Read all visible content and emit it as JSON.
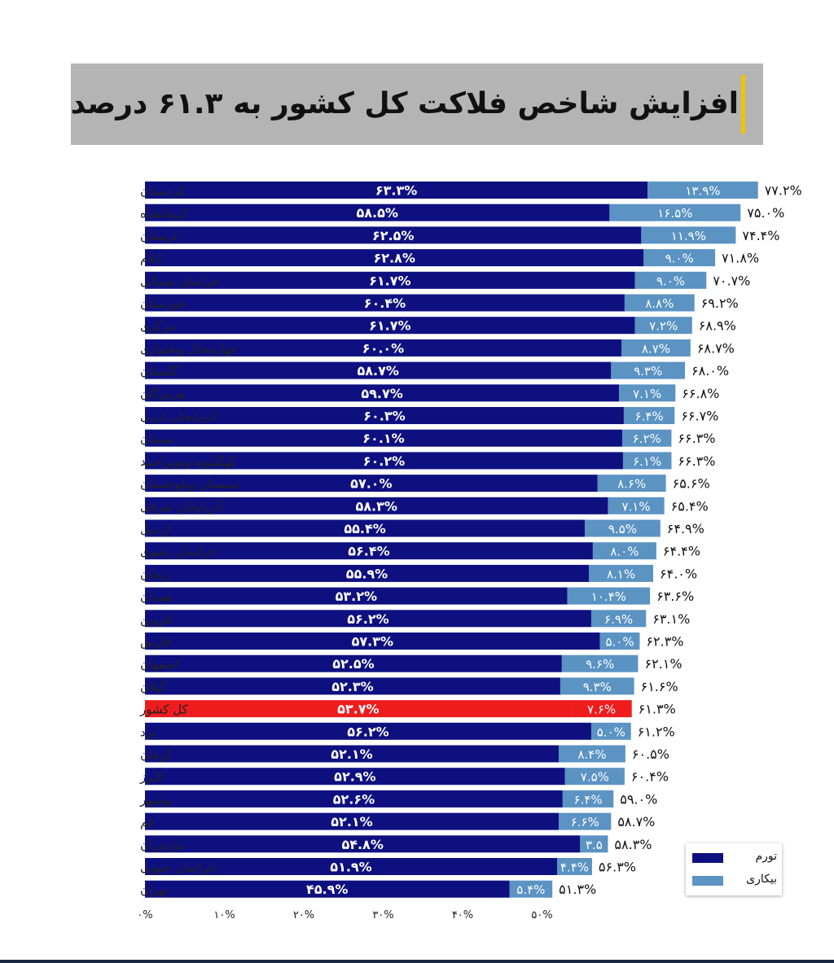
{
  "title": "افزایش شاخص فلاکت کل کشور به ۶۱.۳ درصد",
  "legend": {
    "inflation": "تورم",
    "unemployment": "بیکاری"
  },
  "colors": {
    "inflation": "#0f1080",
    "unemployment": "#5b93c3",
    "highlight": "#ee1c1c",
    "highlight_text": "#d81818"
  },
  "chart_data": {
    "type": "bar",
    "orientation": "horizontal",
    "stacked": true,
    "categories": [
      "کردستان",
      "کرمانشاه",
      "لرستان",
      "ایلام",
      "خراسان شمالی",
      "خوزستان",
      "مرکزی",
      "چهارمحال وبختیاری",
      "گلستان",
      "هرمزگان",
      "آذربایجان غربی",
      "سمنان",
      "کهگیلویه وبویراحمد",
      "سیستان وبلوچستان",
      "آذربایجان شرقی",
      "اردبیل",
      "خراسان رضوی",
      "زنجان",
      "همدان",
      "قزوین",
      "فارس",
      "اصفهان",
      "گیلان",
      "کل کشور",
      "یزد",
      "کرمان",
      "البرز",
      "بوشهر",
      "قم",
      "مازندران",
      "خراسان جنوبی",
      "تهران"
    ],
    "series": [
      {
        "name": "تورم",
        "values": [
          63.3,
          58.5,
          62.5,
          62.8,
          61.7,
          60.4,
          61.7,
          60.0,
          58.7,
          59.7,
          60.3,
          60.1,
          60.2,
          57.0,
          58.3,
          55.4,
          56.4,
          55.9,
          53.2,
          56.2,
          57.3,
          52.5,
          52.3,
          53.7,
          56.2,
          52.1,
          52.9,
          52.6,
          52.1,
          54.8,
          51.9,
          45.9
        ],
        "labels": [
          "۶۳.۳%",
          "۵۸.۵%",
          "۶۲.۵%",
          "۶۲.۸%",
          "۶۱.۷%",
          "۶۰.۴%",
          "۶۱.۷%",
          "۶۰.۰%",
          "۵۸.۷%",
          "۵۹.۷%",
          "۶۰.۳%",
          "۶۰.۱%",
          "۶۰.۲%",
          "۵۷.۰%",
          "۵۸.۳%",
          "۵۵.۴%",
          "۵۶.۴%",
          "۵۵.۹%",
          "۵۳.۲%",
          "۵۶.۲%",
          "۵۷.۳%",
          "۵۲.۵%",
          "۵۲.۳%",
          "۵۳.۷%",
          "۵۶.۲%",
          "۵۲.۱%",
          "۵۲.۹%",
          "۵۲.۶%",
          "۵۲.۱%",
          "۵۴.۸%",
          "۵۱.۹%",
          "۴۵.۹%"
        ]
      },
      {
        "name": "بیکاری",
        "values": [
          13.9,
          16.5,
          11.9,
          9.0,
          9.0,
          8.8,
          7.2,
          8.7,
          9.3,
          7.1,
          6.4,
          6.2,
          6.1,
          8.6,
          7.1,
          9.5,
          8.0,
          8.1,
          10.4,
          6.9,
          5.0,
          9.6,
          9.3,
          7.6,
          5.0,
          8.4,
          7.5,
          6.4,
          6.6,
          3.5,
          4.4,
          5.4
        ],
        "labels": [
          "۱۳.۹%",
          "۱۶.۵%",
          "۱۱.۹%",
          "۹.۰%",
          "۹.۰%",
          "۸.۸%",
          "۷.۲%",
          "۸.۷%",
          "۹.۳%",
          "۷.۱%",
          "۶.۴%",
          "۶.۲%",
          "۶.۱%",
          "۸.۶%",
          "۷.۱%",
          "۹.۵%",
          "۸.۰%",
          "۸.۱%",
          "۱۰.۴%",
          "۶.۹%",
          "۵.۰%",
          "۹.۶%",
          "۹.۳%",
          "۷.۶%",
          "۵.۰%",
          "۸.۴%",
          "۷.۵%",
          "۶.۴%",
          "۶.۶%",
          "۳.۵",
          "۴.۴%",
          "۵.۴%"
        ]
      }
    ],
    "totals": [
      77.2,
      75.0,
      74.4,
      71.8,
      70.7,
      69.2,
      68.9,
      68.7,
      68.0,
      66.8,
      66.7,
      66.3,
      66.3,
      65.6,
      65.4,
      64.9,
      64.4,
      64.0,
      63.6,
      63.1,
      62.3,
      62.1,
      61.6,
      61.3,
      61.2,
      60.5,
      60.4,
      59.0,
      58.7,
      58.3,
      56.3,
      51.3
    ],
    "total_labels": [
      "۷۷.۲%",
      "۷۵.۰%",
      "۷۴.۴%",
      "۷۱.۸%",
      "۷۰.۷%",
      "۶۹.۲%",
      "۶۸.۹%",
      "۶۸.۷%",
      "۶۸.۰%",
      "۶۶.۸%",
      "۶۶.۷%",
      "۶۶.۳%",
      "۶۶.۳%",
      "۶۵.۶%",
      "۶۵.۴%",
      "۶۴.۹%",
      "۶۴.۴%",
      "۶۴.۰%",
      "۶۳.۶%",
      "۶۳.۱%",
      "۶۲.۳%",
      "۶۲.۱%",
      "۶۱.۶%",
      "۶۱.۳%",
      "۶۱.۲%",
      "۶۰.۵%",
      "۶۰.۴%",
      "۵۹.۰%",
      "۵۸.۷%",
      "۵۸.۳%",
      "۵۶.۳%",
      "۵۱.۳%"
    ],
    "highlight_category": "کل کشور",
    "xlim": [
      0,
      80
    ],
    "x_ticks": [
      0,
      10,
      20,
      30,
      40,
      50
    ],
    "x_tick_labels": [
      "۰%",
      "۱۰%",
      "۲۰%",
      "۳۰%",
      "۴۰%",
      "۵۰%"
    ],
    "legend_position": "bottom-right",
    "grid": false
  }
}
